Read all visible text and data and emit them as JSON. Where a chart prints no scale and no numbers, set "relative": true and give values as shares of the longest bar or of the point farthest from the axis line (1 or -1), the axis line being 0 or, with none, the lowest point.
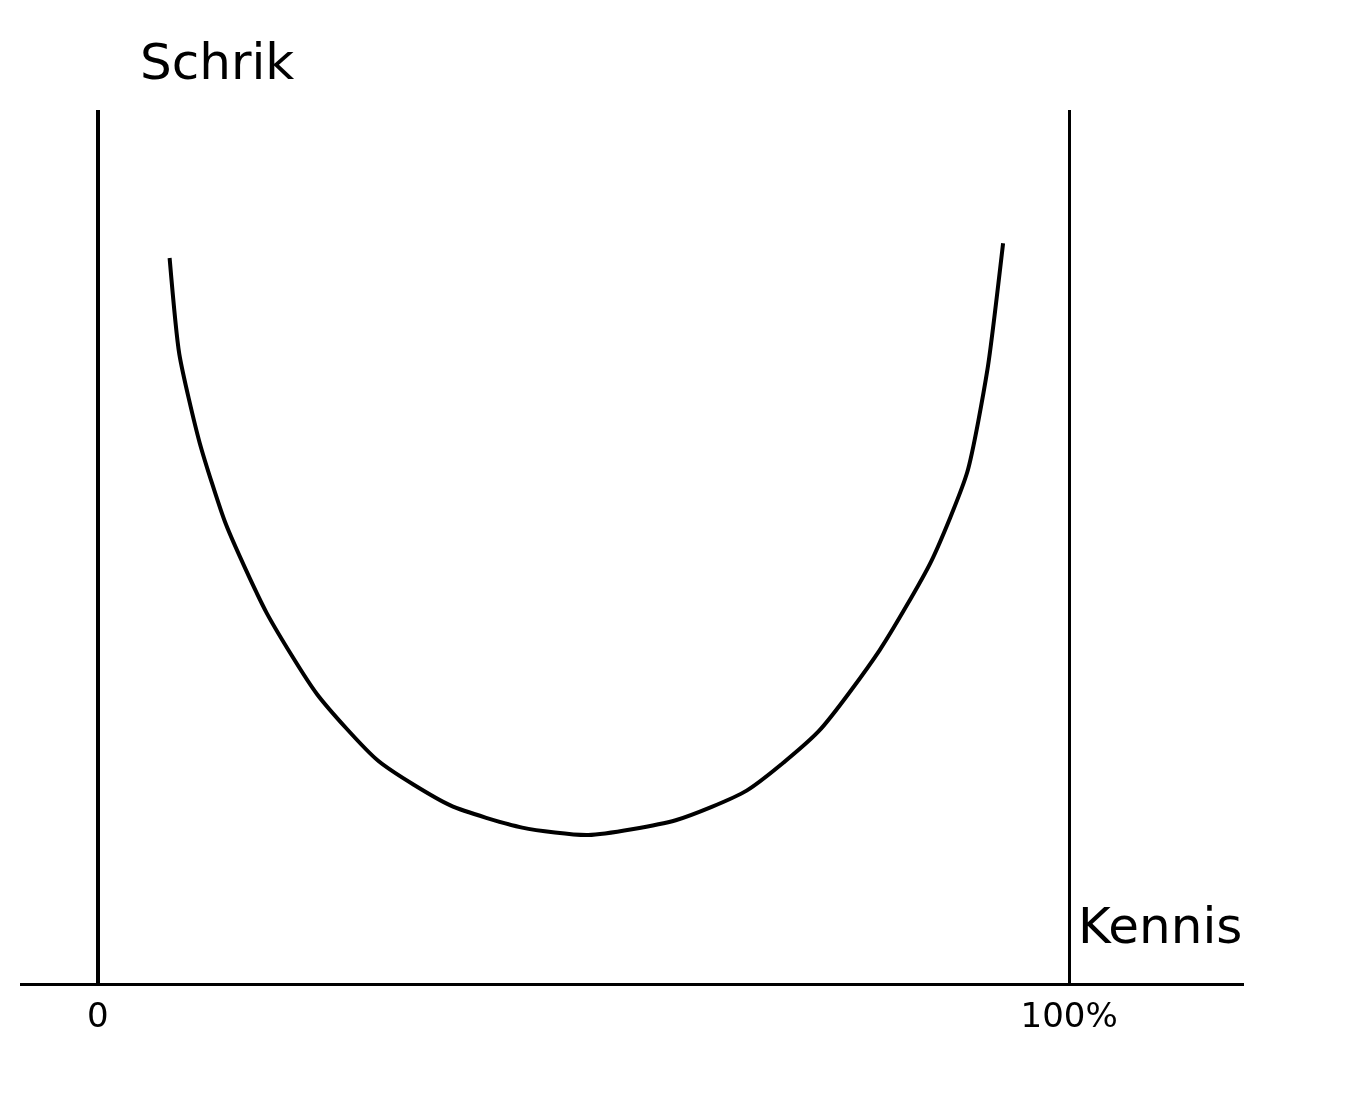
{
  "chart_data": {
    "type": "line",
    "xlabel": "Kennis",
    "ylabel": "Schrik",
    "relative": true,
    "grid": "x",
    "marker": "none",
    "line_style": "solid",
    "xlim": [
      -8,
      118
    ],
    "xticks": [
      0,
      {
        "value": 100,
        "label": "100%"
      }
    ],
    "series": [
      {
        "color": "#000000",
        "x": [
          7.4,
          8.4,
          10.5,
          13.2,
          17.4,
          22.6,
          28.9,
          36.3,
          43.7,
          50.5,
          59.5,
          66.8,
          74.2,
          80.5,
          85.8,
          89.5,
          91.6,
          93.2
        ],
        "values": [
          0.98,
          0.85,
          0.73,
          0.62,
          0.5,
          0.39,
          0.3,
          0.24,
          0.21,
          0.2,
          0.22,
          0.26,
          0.34,
          0.45,
          0.57,
          0.69,
          0.83,
          1
        ]
      }
    ]
  }
}
